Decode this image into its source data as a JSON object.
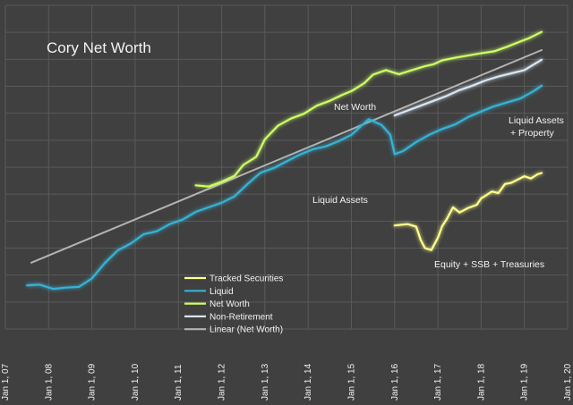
{
  "chart_data": {
    "type": "line",
    "title": "Cory Net Worth",
    "xlabel": "",
    "ylabel": "",
    "x_tick_labels": [
      "Jan 1, 07",
      "Jan 1, 08",
      "Jan 1, 09",
      "Jan 1, 10",
      "Jan 1, 11",
      "Jan 1, 12",
      "Jan 1, 13",
      "Jan 1, 14",
      "Jan 1, 15",
      "Jan 1, 16",
      "Jan 1, 17",
      "Jan 1, 18",
      "Jan 1, 19",
      "Jan 1, 20"
    ],
    "xlim": [
      2007.0,
      2020.0
    ],
    "ylim": [
      0,
      1
    ],
    "y_tick_labels_visible": false,
    "grid": true,
    "legend_position": "bottom-center",
    "legend": [
      {
        "name": "Tracked Securities",
        "color": "#ffff8a"
      },
      {
        "name": "Liquid",
        "color": "#36b3d6"
      },
      {
        "name": "Net Worth",
        "color": "#ccff66"
      },
      {
        "name": "Non-Retirement",
        "color": "#d8e6f2"
      },
      {
        "name": "Linear (Net Worth)",
        "color": "#b3b3b3"
      }
    ],
    "annotations": [
      "Net Worth",
      "Liquid Assets",
      "Liquid Assets + Property",
      "Equity + SSB + Treasuries"
    ],
    "series": [
      {
        "name": "Linear (Net Worth)",
        "color": "#b3b3b3",
        "x": [
          2007.6,
          2019.4
        ],
        "y": [
          0.205,
          0.862
        ]
      },
      {
        "name": "Liquid",
        "color": "#36b3d6",
        "x": [
          2007.5,
          2007.8,
          2008.1,
          2008.4,
          2008.7,
          2009.0,
          2009.3,
          2009.6,
          2009.9,
          2010.2,
          2010.5,
          2010.8,
          2011.1,
          2011.4,
          2011.7,
          2012.0,
          2012.3,
          2012.6,
          2012.9,
          2013.2,
          2013.5,
          2013.8,
          2014.1,
          2014.4,
          2014.7,
          2015.0,
          2015.2,
          2015.4,
          2015.7,
          2015.9,
          2016.0,
          2016.2,
          2016.5,
          2016.8,
          2017.1,
          2017.4,
          2017.7,
          2018.0,
          2018.3,
          2018.6,
          2018.9,
          2019.2,
          2019.4
        ],
        "y": [
          0.135,
          0.137,
          0.124,
          0.128,
          0.13,
          0.156,
          0.204,
          0.243,
          0.264,
          0.293,
          0.302,
          0.324,
          0.338,
          0.362,
          0.376,
          0.39,
          0.41,
          0.448,
          0.483,
          0.497,
          0.518,
          0.538,
          0.555,
          0.564,
          0.58,
          0.6,
          0.624,
          0.648,
          0.63,
          0.6,
          0.54,
          0.55,
          0.578,
          0.6,
          0.618,
          0.632,
          0.655,
          0.672,
          0.688,
          0.7,
          0.712,
          0.734,
          0.752
        ]
      },
      {
        "name": "Net Worth",
        "color": "#ccff66",
        "x": [
          2011.4,
          2011.7,
          2012.0,
          2012.3,
          2012.5,
          2012.8,
          2013.0,
          2013.3,
          2013.6,
          2013.9,
          2014.2,
          2014.5,
          2014.8,
          2015.0,
          2015.3,
          2015.5,
          2015.8,
          2016.1,
          2016.4,
          2016.7,
          2016.9,
          2017.1,
          2017.4,
          2017.7,
          2018.0,
          2018.3,
          2018.6,
          2018.9,
          2019.1,
          2019.4
        ],
        "y": [
          0.444,
          0.44,
          0.455,
          0.473,
          0.507,
          0.532,
          0.586,
          0.628,
          0.65,
          0.665,
          0.69,
          0.705,
          0.724,
          0.735,
          0.76,
          0.786,
          0.8,
          0.787,
          0.8,
          0.812,
          0.818,
          0.83,
          0.838,
          0.845,
          0.852,
          0.858,
          0.872,
          0.888,
          0.898,
          0.918
        ]
      },
      {
        "name": "Non-Retirement",
        "color": "#d8e6f2",
        "x": [
          2016.0,
          2016.3,
          2016.6,
          2016.9,
          2017.2,
          2017.5,
          2017.8,
          2018.1,
          2018.4,
          2018.7,
          2019.0,
          2019.2,
          2019.4
        ],
        "y": [
          0.66,
          0.675,
          0.69,
          0.705,
          0.72,
          0.738,
          0.752,
          0.768,
          0.78,
          0.79,
          0.8,
          0.816,
          0.832
        ]
      },
      {
        "name": "Tracked Securities",
        "color": "#ffff8a",
        "x": [
          2016.0,
          2016.3,
          2016.5,
          2016.6,
          2016.7,
          2016.85,
          2017.0,
          2017.1,
          2017.2,
          2017.35,
          2017.5,
          2017.7,
          2017.9,
          2018.0,
          2018.1,
          2018.25,
          2018.4,
          2018.55,
          2018.7,
          2018.85,
          2019.0,
          2019.15,
          2019.3,
          2019.4
        ],
        "y": [
          0.32,
          0.324,
          0.316,
          0.276,
          0.25,
          0.244,
          0.282,
          0.318,
          0.338,
          0.376,
          0.36,
          0.374,
          0.384,
          0.404,
          0.412,
          0.425,
          0.42,
          0.448,
          0.452,
          0.462,
          0.472,
          0.465,
          0.478,
          0.482
        ]
      }
    ]
  }
}
